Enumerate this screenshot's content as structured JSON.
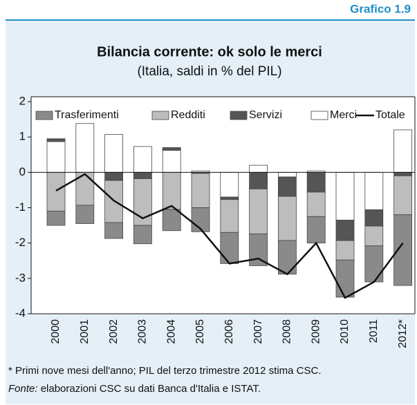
{
  "header": "Grafico 1.9",
  "chart_data": {
    "type": "bar",
    "stacked": true,
    "title": "Bilancia corrente: ok solo le merci",
    "subtitle": "(Italia, saldi in % del PIL)",
    "categories": [
      "2000",
      "2001",
      "2002",
      "2003",
      "2004",
      "2005",
      "2006",
      "2007",
      "2008",
      "2009",
      "2010",
      "2011",
      "2012*"
    ],
    "ylim": [
      -4,
      2
    ],
    "yticks": [
      2,
      1,
      0,
      -1,
      -2,
      -3,
      -4
    ],
    "grid": false,
    "legend": "top",
    "series": [
      {
        "name": "Trasferimenti",
        "color": "#8a8a8a",
        "values": [
          -0.4,
          -0.52,
          -0.45,
          -0.52,
          -0.6,
          -0.68,
          -0.88,
          -0.9,
          -0.95,
          -0.75,
          -1.05,
          -1.02,
          -2.0
        ]
      },
      {
        "name": "Redditi",
        "color": "#bdbdbd",
        "values": [
          -1.1,
          -0.93,
          -1.19,
          -1.32,
          -1.05,
          -0.97,
          -0.93,
          -1.27,
          -1.25,
          -0.69,
          -0.55,
          -0.56,
          -1.1
        ]
      },
      {
        "name": "Servizi",
        "color": "#555555",
        "values": [
          0.08,
          0,
          -0.23,
          -0.18,
          0.08,
          -0.03,
          -0.07,
          -0.47,
          -0.55,
          -0.56,
          -0.58,
          -0.46,
          -0.1
        ]
      },
      {
        "name": "Merci",
        "color": "#ffffff",
        "values": [
          0.87,
          1.38,
          1.07,
          0.73,
          0.62,
          0.04,
          -0.7,
          0.2,
          -0.13,
          0.04,
          -1.35,
          -1.06,
          1.2
        ]
      },
      {
        "name": "Totale",
        "type": "line",
        "color": "#111111",
        "values": [
          -0.52,
          -0.05,
          -0.8,
          -1.3,
          -0.95,
          -1.6,
          -2.58,
          -2.44,
          -2.88,
          -2.0,
          -3.55,
          -3.1,
          -2.0
        ]
      }
    ]
  },
  "note": "* Primi nove mesi dell'anno; PIL del terzo trimestre 2012 stima CSC.",
  "source": {
    "label": "Fonte:",
    "text": " elaborazioni CSC su dati Banca d'Italia e ISTAT."
  }
}
